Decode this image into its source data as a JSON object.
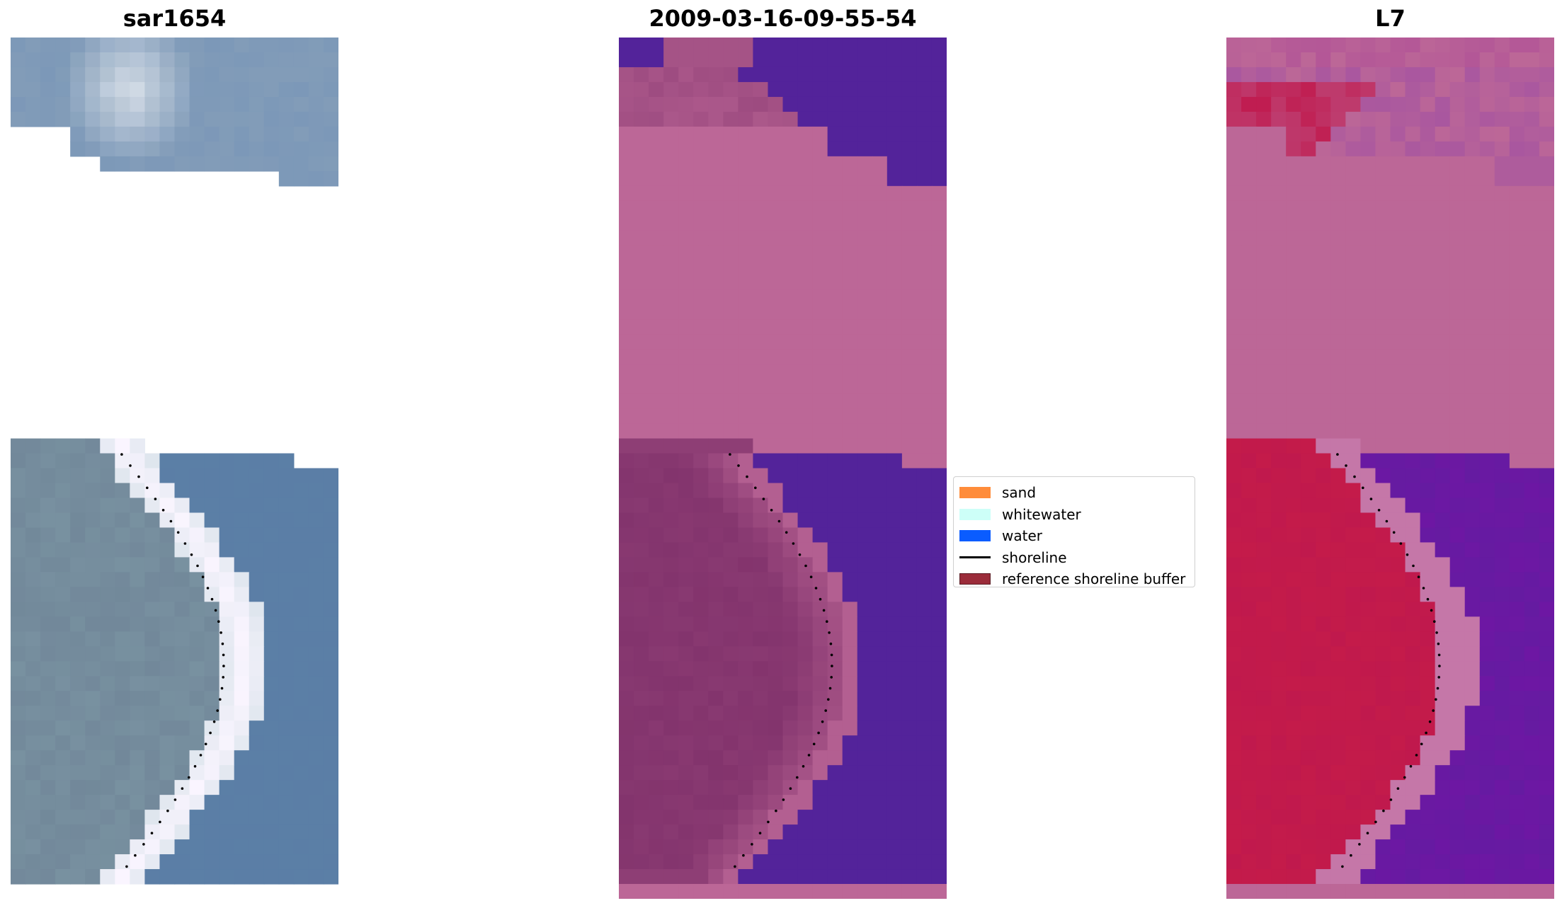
{
  "titles": {
    "left": "sar1654",
    "middle": "2009-03-16-09-55-54",
    "right": "L7"
  },
  "legend": {
    "items": [
      {
        "label": "sand",
        "color": "#ff8c3a"
      },
      {
        "label": "whitewater",
        "color": "#cdfff8"
      },
      {
        "label": "water",
        "color": "#0a5cff"
      },
      {
        "label": "shoreline",
        "color": "#000000"
      },
      {
        "label": "reference shoreline buffer",
        "color": "#9b2c3a"
      }
    ]
  },
  "colors": {
    "rgb_sky": "#7c98b8",
    "rgb_sand_bright": "#dfe6ee",
    "rgb_water": "#5b7fa6",
    "class_water": "#53239a",
    "class_sand_overlay": "#bc6797",
    "class_dark_sand": "#83346d",
    "mndwi_land": "#c0194d",
    "mndwi_water": "#6d17a3",
    "mndwi_mask": "#bc6797"
  }
}
